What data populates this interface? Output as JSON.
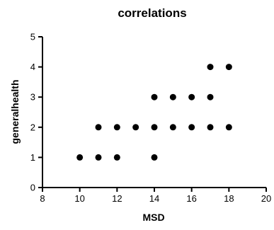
{
  "chart_data": {
    "type": "scatter",
    "title": "correlations",
    "xlabel": "MSD",
    "ylabel": "generalhealth",
    "xlim": [
      8,
      20
    ],
    "ylim": [
      0,
      5
    ],
    "xticks": [
      8,
      10,
      12,
      14,
      16,
      18,
      20
    ],
    "yticks": [
      0,
      1,
      2,
      3,
      4,
      5
    ],
    "grid": false,
    "legend": "none",
    "marker_color": "#000000",
    "points": [
      {
        "x": 10,
        "y": 1
      },
      {
        "x": 11,
        "y": 1
      },
      {
        "x": 11,
        "y": 2
      },
      {
        "x": 12,
        "y": 1
      },
      {
        "x": 12,
        "y": 2
      },
      {
        "x": 13,
        "y": 2
      },
      {
        "x": 14,
        "y": 1
      },
      {
        "x": 14,
        "y": 2
      },
      {
        "x": 14,
        "y": 3
      },
      {
        "x": 15,
        "y": 2
      },
      {
        "x": 15,
        "y": 3
      },
      {
        "x": 16,
        "y": 2
      },
      {
        "x": 16,
        "y": 3
      },
      {
        "x": 17,
        "y": 2
      },
      {
        "x": 17,
        "y": 3
      },
      {
        "x": 17,
        "y": 4
      },
      {
        "x": 18,
        "y": 2
      },
      {
        "x": 18,
        "y": 4
      }
    ]
  }
}
